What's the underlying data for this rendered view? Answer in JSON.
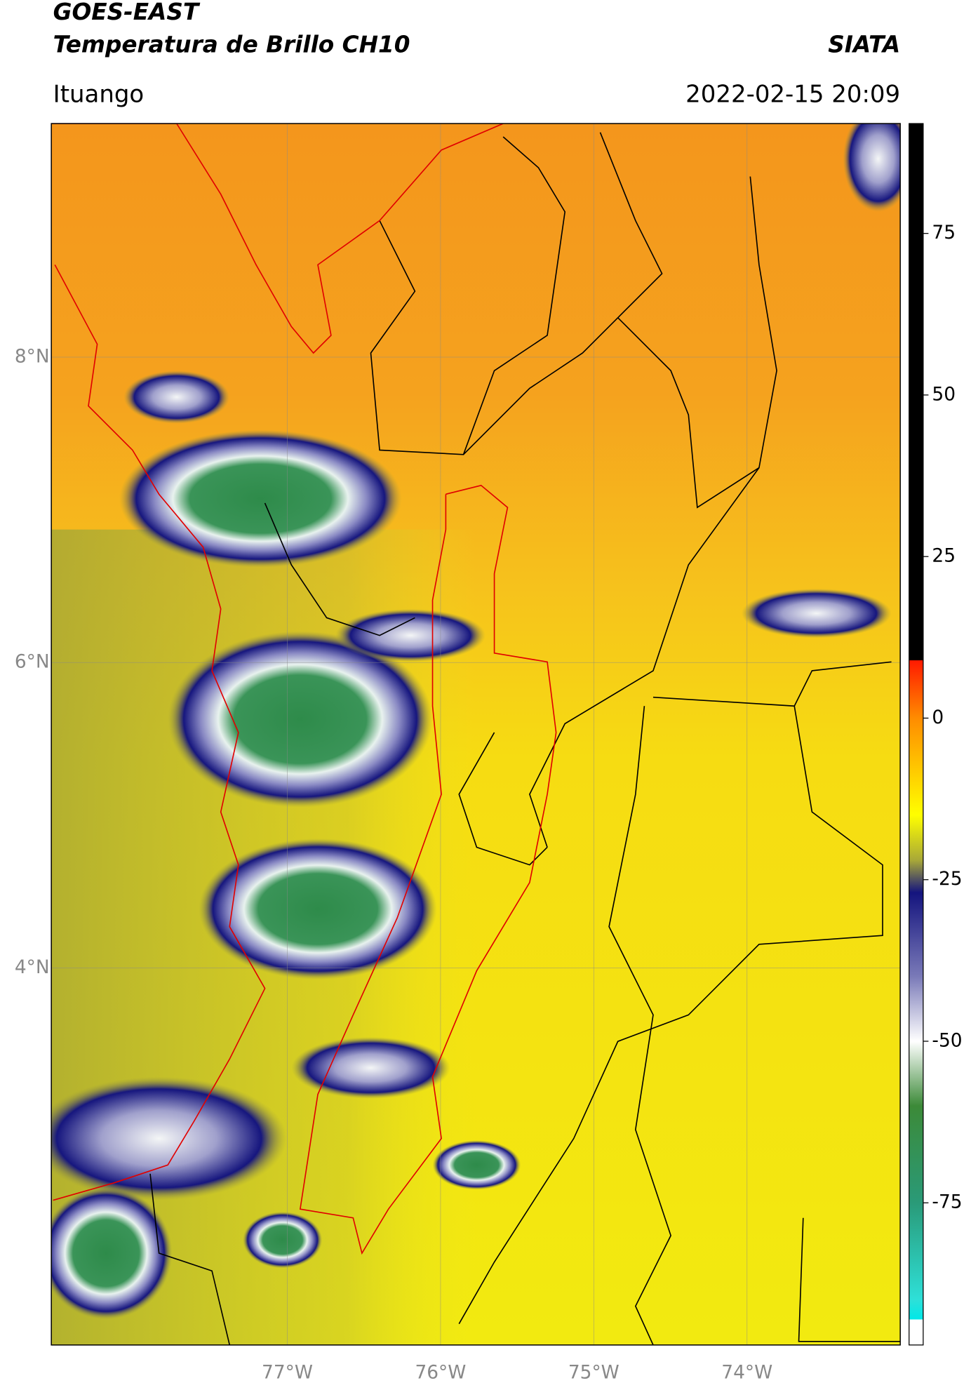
{
  "header": {
    "title": "GOES-EAST",
    "subtitle": "Temperatura de Brillo CH10",
    "source": "SIATA",
    "location": "Ituango",
    "datetime": "2022-02-15 20:09"
  },
  "map": {
    "xlim": [
      -78.54,
      -73.0
    ],
    "ylim": [
      1.53,
      9.53
    ],
    "xticks": [
      {
        "value": -77,
        "label": "77°W"
      },
      {
        "value": -76,
        "label": "76°W"
      },
      {
        "value": -75,
        "label": "75°W"
      },
      {
        "value": -74,
        "label": "74°W"
      }
    ],
    "yticks": [
      {
        "value": 8,
        "label": "8°N"
      },
      {
        "value": 6,
        "label": "6°N"
      },
      {
        "value": 4,
        "label": "4°N"
      }
    ],
    "grid": true
  },
  "colorbar": {
    "lim": [
      -97,
      92
    ],
    "ticks": [
      75,
      50,
      25,
      0,
      -25,
      -50,
      -75
    ],
    "colormap": [
      [
        92,
        "#000000"
      ],
      [
        9,
        "#000000"
      ],
      [
        8.9,
        "#ff1a00"
      ],
      [
        0,
        "#ff8c00"
      ],
      [
        -15,
        "#ffff00"
      ],
      [
        -22,
        "#a8a838"
      ],
      [
        -27,
        "#14147e"
      ],
      [
        -40,
        "#7a7ab8"
      ],
      [
        -50,
        "#ffffff"
      ],
      [
        -60,
        "#3c8a38"
      ],
      [
        -75,
        "#2a9a78"
      ],
      [
        -90,
        "#2ee0d8"
      ],
      [
        -93,
        "#00e8e8"
      ],
      [
        -93.1,
        "#ffffff"
      ],
      [
        -97,
        "#ffffff"
      ]
    ]
  }
}
